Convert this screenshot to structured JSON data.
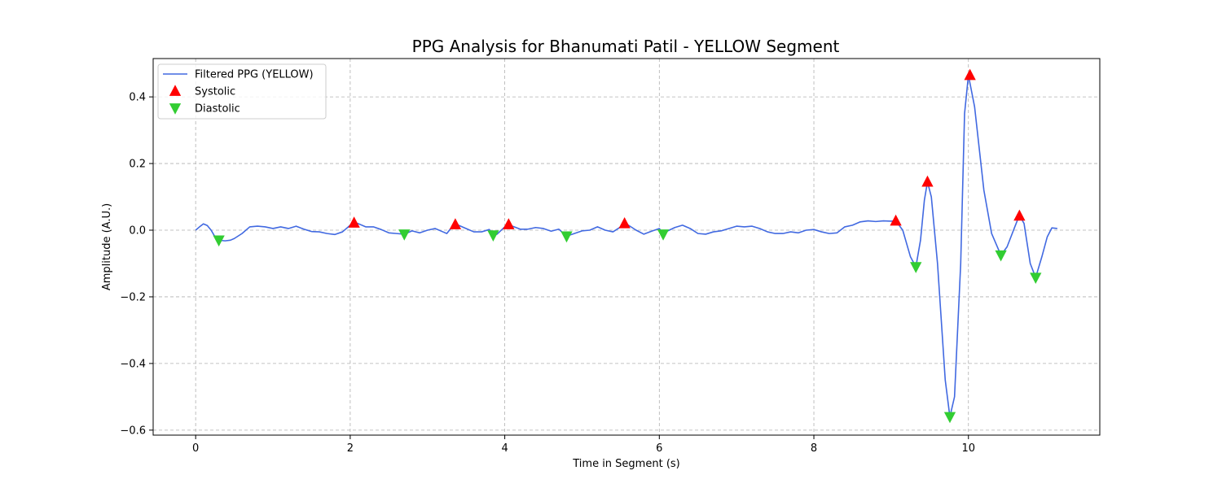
{
  "chart_data": {
    "type": "line",
    "title": "PPG Analysis for Bhanumati Patil - YELLOW Segment",
    "xlabel": "Time in Segment (s)",
    "ylabel": "Amplitude (A.U.)",
    "xlim": [
      -0.55,
      11.7
    ],
    "ylim": [
      -0.615,
      0.515
    ],
    "x_ticks": [
      0,
      2,
      4,
      6,
      8,
      10
    ],
    "x_tick_labels": [
      "0",
      "2",
      "4",
      "6",
      "8",
      "10"
    ],
    "y_ticks": [
      -0.6,
      -0.4,
      -0.2,
      0.0,
      0.2,
      0.4
    ],
    "y_tick_labels": [
      "−0.6",
      "−0.4",
      "−0.2",
      "0.0",
      "0.2",
      "0.4"
    ],
    "grid": true,
    "legend_position": "top-left",
    "colors": {
      "line": "#4169e1",
      "systolic": "#ff0000",
      "diastolic": "#32cd32",
      "grid": "#b0b0b0"
    },
    "series": [
      {
        "name": "Filtered PPG (YELLOW)",
        "kind": "line",
        "points": [
          [
            0.0,
            0.0
          ],
          [
            0.05,
            0.01
          ],
          [
            0.1,
            0.019
          ],
          [
            0.15,
            0.014
          ],
          [
            0.2,
            0.0
          ],
          [
            0.25,
            -0.02
          ],
          [
            0.3,
            -0.03
          ],
          [
            0.38,
            -0.032
          ],
          [
            0.45,
            -0.03
          ],
          [
            0.5,
            -0.025
          ],
          [
            0.6,
            -0.01
          ],
          [
            0.7,
            0.01
          ],
          [
            0.8,
            0.012
          ],
          [
            0.9,
            0.01
          ],
          [
            1.0,
            0.005
          ],
          [
            1.1,
            0.01
          ],
          [
            1.2,
            0.005
          ],
          [
            1.3,
            0.012
          ],
          [
            1.4,
            0.003
          ],
          [
            1.5,
            -0.004
          ],
          [
            1.6,
            -0.005
          ],
          [
            1.7,
            -0.01
          ],
          [
            1.8,
            -0.013
          ],
          [
            1.9,
            -0.005
          ],
          [
            2.0,
            0.015
          ],
          [
            2.05,
            0.022
          ],
          [
            2.1,
            0.02
          ],
          [
            2.2,
            0.01
          ],
          [
            2.3,
            0.01
          ],
          [
            2.4,
            0.002
          ],
          [
            2.5,
            -0.008
          ],
          [
            2.6,
            -0.01
          ],
          [
            2.7,
            -0.012
          ],
          [
            2.8,
            -0.002
          ],
          [
            2.9,
            -0.008
          ],
          [
            3.0,
            0.0
          ],
          [
            3.1,
            0.005
          ],
          [
            3.2,
            -0.005
          ],
          [
            3.25,
            -0.01
          ],
          [
            3.3,
            0.005
          ],
          [
            3.36,
            0.017
          ],
          [
            3.4,
            0.015
          ],
          [
            3.5,
            0.005
          ],
          [
            3.6,
            -0.005
          ],
          [
            3.7,
            -0.005
          ],
          [
            3.8,
            0.002
          ],
          [
            3.85,
            -0.015
          ],
          [
            3.9,
            -0.012
          ],
          [
            4.0,
            0.01
          ],
          [
            4.05,
            0.017
          ],
          [
            4.1,
            0.012
          ],
          [
            4.2,
            0.003
          ],
          [
            4.3,
            0.003
          ],
          [
            4.4,
            0.008
          ],
          [
            4.5,
            0.005
          ],
          [
            4.6,
            -0.003
          ],
          [
            4.7,
            0.003
          ],
          [
            4.8,
            -0.018
          ],
          [
            4.9,
            -0.01
          ],
          [
            5.0,
            -0.002
          ],
          [
            5.1,
            0.0
          ],
          [
            5.2,
            0.01
          ],
          [
            5.3,
            0.0
          ],
          [
            5.4,
            -0.005
          ],
          [
            5.5,
            0.01
          ],
          [
            5.55,
            0.02
          ],
          [
            5.6,
            0.015
          ],
          [
            5.7,
            0.0
          ],
          [
            5.8,
            -0.012
          ],
          [
            5.9,
            -0.003
          ],
          [
            6.0,
            0.005
          ],
          [
            6.05,
            -0.012
          ],
          [
            6.1,
            -0.003
          ],
          [
            6.2,
            0.008
          ],
          [
            6.3,
            0.015
          ],
          [
            6.4,
            0.005
          ],
          [
            6.5,
            -0.01
          ],
          [
            6.6,
            -0.012
          ],
          [
            6.7,
            -0.005
          ],
          [
            6.8,
            -0.002
          ],
          [
            6.9,
            0.005
          ],
          [
            7.0,
            0.012
          ],
          [
            7.1,
            0.01
          ],
          [
            7.2,
            0.012
          ],
          [
            7.3,
            0.005
          ],
          [
            7.4,
            -0.005
          ],
          [
            7.5,
            -0.01
          ],
          [
            7.6,
            -0.01
          ],
          [
            7.7,
            -0.005
          ],
          [
            7.8,
            -0.008
          ],
          [
            7.9,
            0.0
          ],
          [
            8.0,
            0.002
          ],
          [
            8.1,
            -0.005
          ],
          [
            8.2,
            -0.01
          ],
          [
            8.3,
            -0.008
          ],
          [
            8.4,
            0.01
          ],
          [
            8.5,
            0.015
          ],
          [
            8.6,
            0.025
          ],
          [
            8.7,
            0.028
          ],
          [
            8.8,
            0.026
          ],
          [
            8.9,
            0.028
          ],
          [
            9.0,
            0.027
          ],
          [
            9.06,
            0.028
          ],
          [
            9.15,
            0.0
          ],
          [
            9.25,
            -0.08
          ],
          [
            9.32,
            -0.11
          ],
          [
            9.38,
            -0.03
          ],
          [
            9.43,
            0.09
          ],
          [
            9.47,
            0.145
          ],
          [
            9.52,
            0.1
          ],
          [
            9.6,
            -0.1
          ],
          [
            9.7,
            -0.45
          ],
          [
            9.76,
            -0.56
          ],
          [
            9.82,
            -0.5
          ],
          [
            9.9,
            -0.1
          ],
          [
            9.95,
            0.35
          ],
          [
            10.0,
            0.465
          ],
          [
            10.08,
            0.37
          ],
          [
            10.2,
            0.12
          ],
          [
            10.3,
            -0.01
          ],
          [
            10.42,
            -0.075
          ],
          [
            10.5,
            -0.05
          ],
          [
            10.6,
            0.01
          ],
          [
            10.66,
            0.045
          ],
          [
            10.72,
            0.02
          ],
          [
            10.8,
            -0.1
          ],
          [
            10.87,
            -0.142
          ],
          [
            10.95,
            -0.08
          ],
          [
            11.02,
            -0.02
          ],
          [
            11.08,
            0.007
          ],
          [
            11.15,
            0.005
          ]
        ]
      },
      {
        "name": "Systolic",
        "kind": "marker",
        "marker": "triangle-up",
        "points": [
          [
            2.05,
            0.022
          ],
          [
            3.36,
            0.017
          ],
          [
            4.05,
            0.017
          ],
          [
            5.55,
            0.02
          ],
          [
            9.06,
            0.028
          ],
          [
            9.47,
            0.145
          ],
          [
            10.02,
            0.465
          ],
          [
            10.66,
            0.043
          ]
        ]
      },
      {
        "name": "Diastolic",
        "kind": "marker",
        "marker": "triangle-down",
        "points": [
          [
            0.3,
            -0.03
          ],
          [
            2.7,
            -0.012
          ],
          [
            3.85,
            -0.015
          ],
          [
            4.8,
            -0.018
          ],
          [
            6.05,
            -0.012
          ],
          [
            9.32,
            -0.11
          ],
          [
            9.76,
            -0.56
          ],
          [
            10.42,
            -0.075
          ],
          [
            10.87,
            -0.142
          ]
        ]
      }
    ],
    "legend": [
      {
        "label": "Filtered PPG (YELLOW)",
        "symbol": "line"
      },
      {
        "label": "Systolic",
        "symbol": "triangle-up"
      },
      {
        "label": "Diastolic",
        "symbol": "triangle-down"
      }
    ]
  }
}
